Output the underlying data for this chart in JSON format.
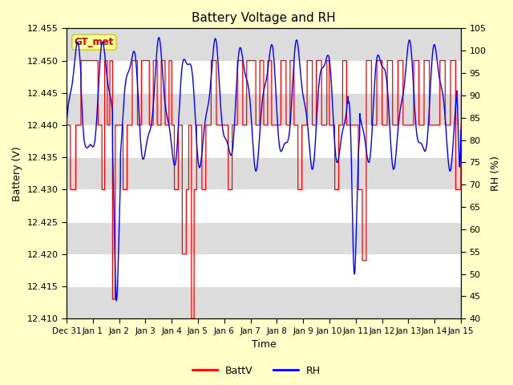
{
  "title": "Battery Voltage and RH",
  "xlabel": "Time",
  "ylabel_left": "Battery (V)",
  "ylabel_right": "RH (%)",
  "legend_label": "GT_met",
  "xlim_days": [
    0,
    15
  ],
  "ylim_left": [
    12.41,
    12.455
  ],
  "ylim_right": [
    40,
    105
  ],
  "yticks_left": [
    12.41,
    12.415,
    12.42,
    12.425,
    12.43,
    12.435,
    12.44,
    12.445,
    12.45,
    12.455
  ],
  "yticks_right": [
    40,
    45,
    50,
    55,
    60,
    65,
    70,
    75,
    80,
    85,
    90,
    95,
    100,
    105
  ],
  "xtick_labels": [
    "Dec 31",
    "Jan 1",
    "Jan 2",
    "Jan 3",
    "Jan 4",
    "Jan 5",
    "Jan 6",
    "Jan 7",
    "Jan 8",
    "Jan 9",
    "Jan 10",
    "Jan 11",
    "Jan 12",
    "Jan 13",
    "Jan 14",
    "Jan 15"
  ],
  "batt_color": "#FF0000",
  "rh_color": "#0000FF",
  "background_color": "#FFFFC8",
  "plot_bg_color": "#FFFFFF",
  "band_color": "#DCDCDC",
  "legend_box_facecolor": "#FFFF99",
  "legend_box_edgecolor": "#CCCC00",
  "legend_text_color": "#CC0000",
  "title_fontsize": 11,
  "axis_label_fontsize": 9,
  "tick_fontsize": 8
}
